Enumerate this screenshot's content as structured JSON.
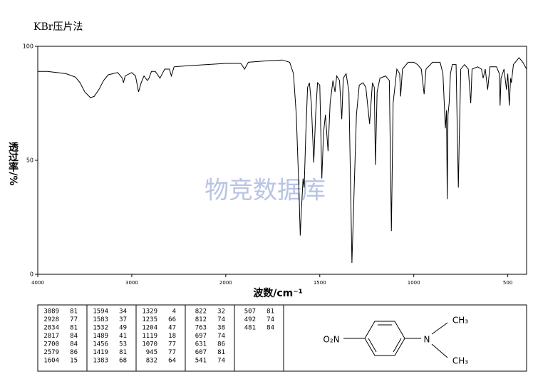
{
  "chart_data": {
    "type": "line",
    "title": "KBr压片法",
    "xlabel": "波数/cm⁻¹",
    "ylabel": "透过率/%",
    "color": "#000000",
    "xlim": [
      4000,
      400
    ],
    "xticks": [
      4000,
      3000,
      2000,
      1500,
      1000,
      500
    ],
    "ylim": [
      0,
      100
    ],
    "yticks": [
      0,
      50,
      100
    ],
    "x": [
      4000,
      3900,
      3800,
      3700,
      3600,
      3550,
      3500,
      3440,
      3400,
      3350,
      3300,
      3250,
      3200,
      3150,
      3100,
      3089,
      3070,
      3000,
      2960,
      2928,
      2900,
      2870,
      2834,
      2817,
      2790,
      2750,
      2700,
      2650,
      2600,
      2579,
      2550,
      2400,
      2200,
      2000,
      1920,
      1900,
      1880,
      1800,
      1700,
      1660,
      1640,
      1625,
      1610,
      1604,
      1598,
      1594,
      1589,
      1583,
      1575,
      1565,
      1555,
      1545,
      1532,
      1522,
      1512,
      1500,
      1489,
      1480,
      1470,
      1456,
      1445,
      1430,
      1419,
      1410,
      1395,
      1383,
      1375,
      1360,
      1345,
      1329,
      1318,
      1305,
      1290,
      1270,
      1255,
      1235,
      1220,
      1210,
      1204,
      1195,
      1180,
      1150,
      1130,
      1119,
      1110,
      1090,
      1075,
      1070,
      1060,
      1030,
      1000,
      980,
      960,
      945,
      935,
      900,
      860,
      845,
      832,
      826,
      822,
      818,
      812,
      805,
      795,
      775,
      763,
      758,
      750,
      730,
      710,
      697,
      690,
      660,
      640,
      631,
      620,
      607,
      595,
      560,
      545,
      541,
      536,
      520,
      507,
      500,
      492,
      485,
      481,
      470,
      440,
      420,
      400
    ],
    "values": [
      89,
      89,
      88.5,
      88,
      86.5,
      84,
      80,
      77.5,
      78,
      81,
      85,
      87.5,
      88,
      88.5,
      86,
      84,
      87,
      88.5,
      87,
      80,
      84,
      87,
      85,
      86,
      89,
      89,
      86,
      90,
      90,
      87,
      91,
      91.5,
      92,
      92.5,
      92.5,
      90,
      93,
      93.5,
      94,
      93,
      88,
      70,
      35,
      17,
      28,
      34,
      42,
      38,
      60,
      82,
      84,
      75,
      49,
      70,
      84,
      83,
      42,
      62,
      70,
      54,
      75,
      85,
      80,
      87,
      85,
      68,
      86,
      88,
      80,
      5,
      35,
      70,
      83,
      84,
      82,
      66,
      84,
      82,
      48,
      80,
      86,
      87,
      85,
      19,
      75,
      90,
      88,
      78,
      90,
      93,
      93,
      92,
      90,
      79,
      90,
      93,
      93,
      88,
      64,
      72,
      33,
      70,
      75,
      88,
      92,
      92,
      38,
      60,
      90,
      92,
      90,
      75,
      90,
      91,
      90,
      86,
      90,
      81,
      91,
      91,
      88,
      74,
      86,
      90,
      81,
      88,
      74,
      86,
      84,
      92,
      95,
      93,
      90
    ]
  },
  "peak_table": [
    [
      [
        3089,
        81
      ],
      [
        2928,
        77
      ],
      [
        2834,
        81
      ],
      [
        2817,
        84
      ],
      [
        2700,
        84
      ],
      [
        2579,
        86
      ],
      [
        1604,
        15
      ]
    ],
    [
      [
        1594,
        34
      ],
      [
        1583,
        37
      ],
      [
        1532,
        49
      ],
      [
        1489,
        41
      ],
      [
        1456,
        53
      ],
      [
        1419,
        81
      ],
      [
        1383,
        68
      ]
    ],
    [
      [
        1329,
        4
      ],
      [
        1235,
        66
      ],
      [
        1204,
        47
      ],
      [
        1119,
        18
      ],
      [
        1070,
        77
      ],
      [
        945,
        77
      ],
      [
        832,
        64
      ]
    ],
    [
      [
        822,
        32
      ],
      [
        812,
        74
      ],
      [
        763,
        38
      ],
      [
        697,
        74
      ],
      [
        631,
        86
      ],
      [
        607,
        81
      ],
      [
        541,
        74
      ]
    ],
    [
      [
        507,
        81
      ],
      [
        492,
        74
      ],
      [
        481,
        84
      ]
    ]
  ],
  "structure": {
    "labels": [
      "O₂N",
      "N",
      "CH₃",
      "CH₃"
    ]
  },
  "watermark": "物竞数据库"
}
